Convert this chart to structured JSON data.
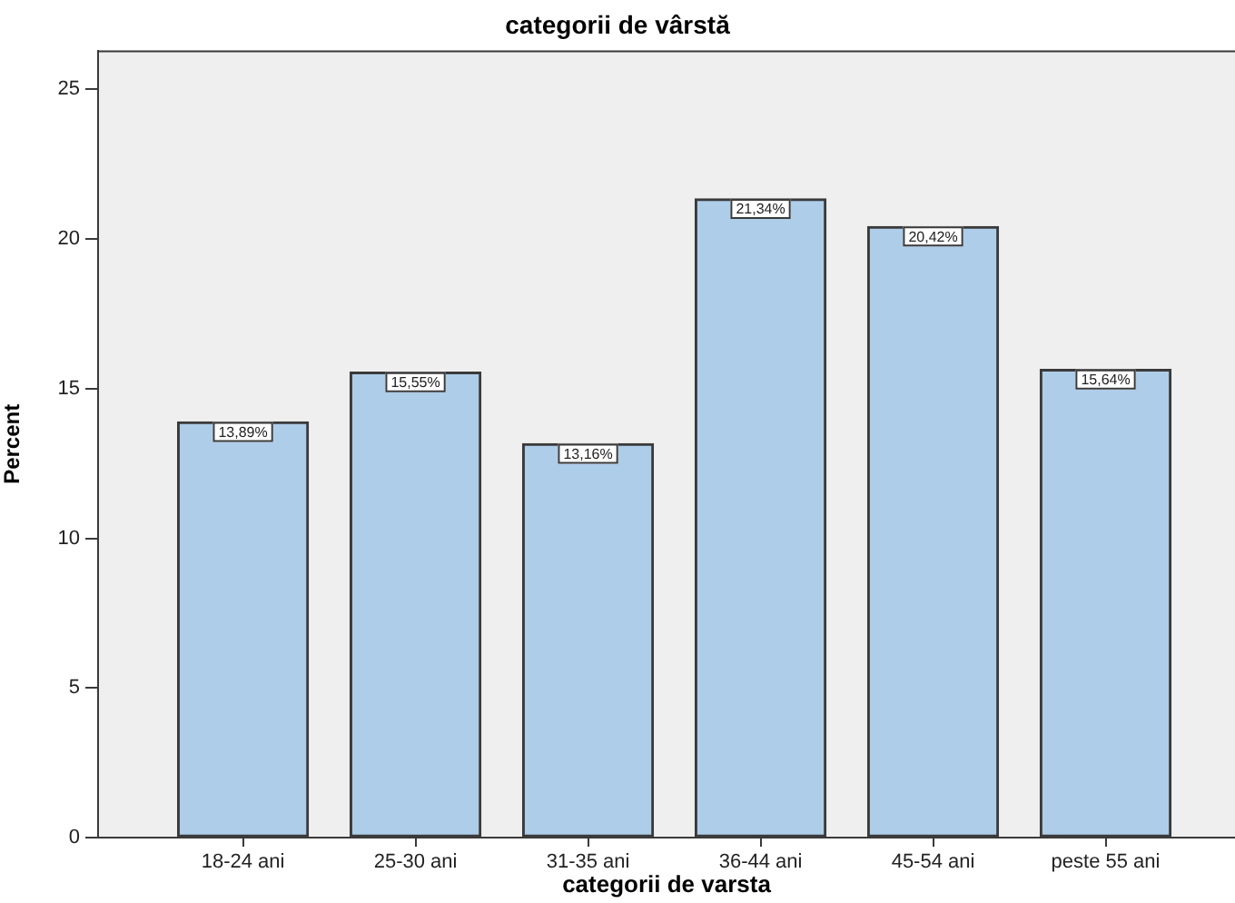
{
  "chart_data": {
    "type": "bar",
    "title": "categorii de vârstă",
    "xlabel": "categorii de varsta",
    "ylabel": "Percent",
    "categories": [
      "18-24 ani",
      "25-30 ani",
      "31-35 ani",
      "36-44 ani",
      "45-54 ani",
      "peste 55 ani"
    ],
    "values": [
      13.89,
      15.55,
      13.16,
      21.34,
      20.42,
      15.64
    ],
    "value_labels": [
      "13,89%",
      "15,55%",
      "13,16%",
      "21,34%",
      "20,42%",
      "15,64%"
    ],
    "color": "#aecde9",
    "ylim": [
      0,
      26.3
    ],
    "yticks": [
      0,
      5,
      10,
      15,
      20,
      25
    ]
  }
}
